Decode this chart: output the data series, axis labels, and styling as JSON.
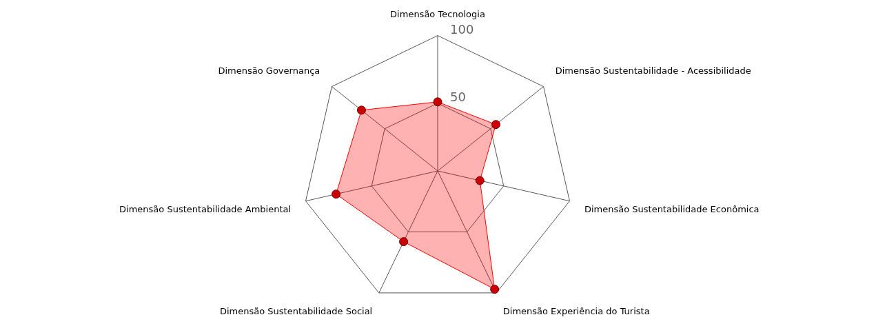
{
  "chart_data": {
    "type": "radar",
    "categories": [
      "Dimensão Tecnologia",
      "Dimensão Sustentabilidade - Acessibilidade",
      "Dimensão Sustentabilidade Econômica",
      "Dimensão Experiência do Turista",
      "Dimensão Sustentabilidade Social",
      "Dimensão Sustentabilidade Ambiental",
      "Dimensão Governança"
    ],
    "series": [
      {
        "color": "#ff0000",
        "values": [
          51,
          55,
          32,
          97,
          58,
          77,
          72
        ]
      }
    ],
    "ylim": [
      0,
      100
    ],
    "yticks": [
      50,
      100
    ],
    "grid": true,
    "legend": false,
    "marker": "circle"
  }
}
